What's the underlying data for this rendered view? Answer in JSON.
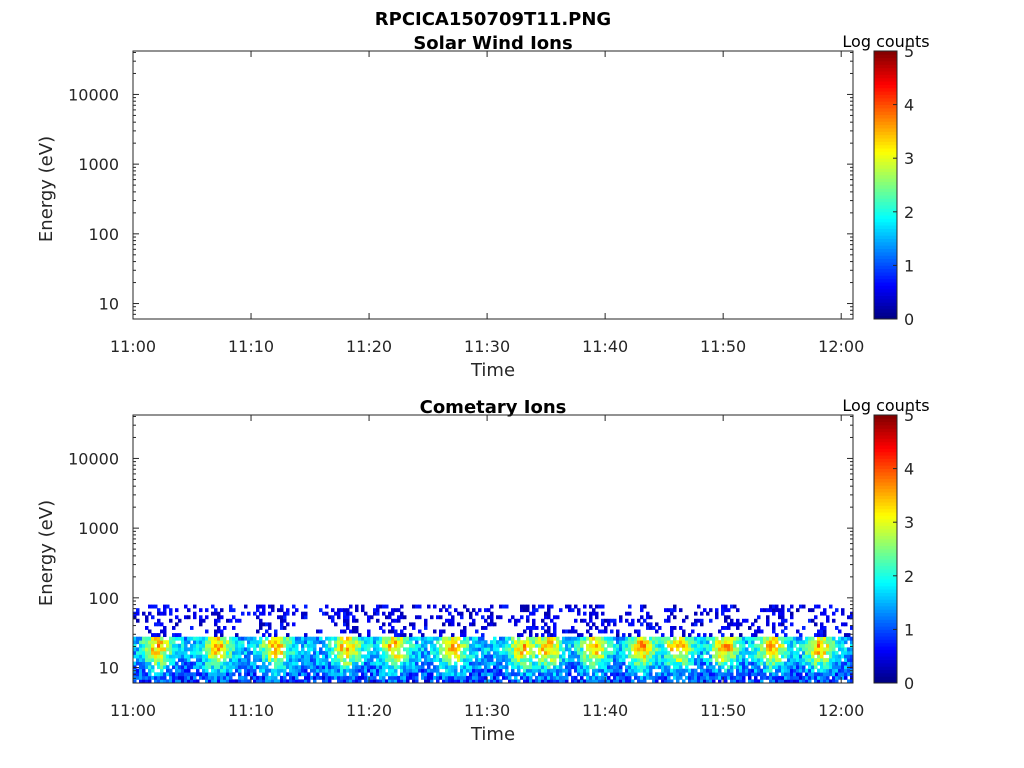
{
  "figure_title": "RPCICA150709T11.PNG",
  "chart_data": [
    {
      "type": "heatmap",
      "title": "Solar Wind Ions",
      "xlabel": "Time",
      "ylabel": "Energy (eV)",
      "x_ticks": [
        "11:00",
        "11:10",
        "11:20",
        "11:30",
        "11:40",
        "11:50",
        "12:00"
      ],
      "xlim": [
        "11:00",
        "12:01"
      ],
      "y_scale": "log",
      "y_ticks": [
        10,
        100,
        1000,
        10000
      ],
      "y_tick_labels": [
        "10",
        "100",
        "1000",
        "10000"
      ],
      "ylim": [
        6,
        42000
      ],
      "colorbar": {
        "label": "Log counts",
        "range": [
          0,
          5
        ],
        "ticks": [
          "0",
          "1",
          "2",
          "3",
          "4",
          "5"
        ],
        "colormap": "jet"
      },
      "cells": []
    },
    {
      "type": "heatmap",
      "title": "Cometary Ions",
      "xlabel": "Time",
      "ylabel": "Energy (eV)",
      "x_ticks": [
        "11:00",
        "11:10",
        "11:20",
        "11:30",
        "11:40",
        "11:50",
        "12:00"
      ],
      "xlim": [
        "11:00",
        "12:01"
      ],
      "y_scale": "log",
      "y_ticks": [
        10,
        100,
        1000,
        10000
      ],
      "y_tick_labels": [
        "10",
        "100",
        "1000",
        "10000"
      ],
      "ylim": [
        6,
        42000
      ],
      "colorbar": {
        "label": "Log counts",
        "range": [
          0,
          5
        ],
        "ticks": [
          "0",
          "1",
          "2",
          "3",
          "4",
          "5"
        ],
        "colormap": "jet"
      },
      "energy_range_with_counts_eV": [
        6,
        80
      ],
      "peak_times": [
        "11:02",
        "11:07",
        "11:12",
        "11:18",
        "11:22",
        "11:27",
        "11:33",
        "11:35",
        "11:39",
        "11:43",
        "11:46",
        "11:50",
        "11:54",
        "11:58"
      ],
      "peak_energy_eV": 20,
      "peak_log_counts": 3.7,
      "background_log_counts": 1.8
    }
  ]
}
